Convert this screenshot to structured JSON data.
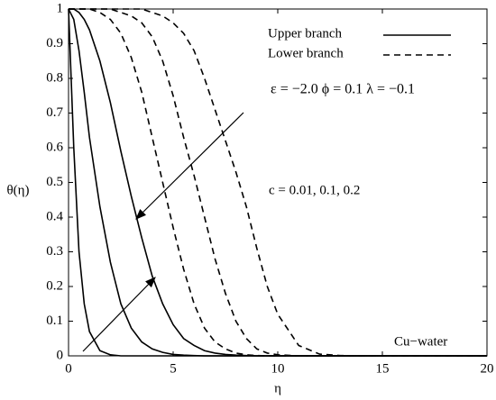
{
  "chart_data": {
    "type": "line",
    "xlabel": "η",
    "ylabel": "θ(η)",
    "xlim": [
      0,
      20
    ],
    "xticks": [
      0,
      5,
      10,
      15,
      20
    ],
    "ylim": [
      0,
      1
    ],
    "yticks": [
      0,
      0.1,
      0.2,
      0.3,
      0.4,
      0.5,
      0.6,
      0.7,
      0.8,
      0.9,
      1
    ],
    "annotations": [
      "ε = −2.0   ϕ = 0.1   λ = −0.1",
      "c = 0.01, 0.1, 0.2",
      "Cu−water"
    ],
    "x": [
      0,
      0.25,
      0.5,
      0.75,
      1,
      1.5,
      2,
      2.5,
      3,
      3.5,
      4,
      4.5,
      5,
      5.5,
      6,
      6.5,
      7,
      7.5,
      8,
      8.5,
      9,
      9.5,
      10,
      11,
      12,
      13,
      14,
      15,
      16,
      17,
      18,
      19,
      20
    ],
    "series": [
      {
        "name": "Upper branch",
        "color": "#000000",
        "dashed": false,
        "lines": [
          [
            1,
            0.6,
            0.3,
            0.15,
            0.07,
            0.015,
            0.003,
            0,
            0,
            0,
            0,
            0,
            0,
            0,
            0,
            0,
            0,
            0,
            0,
            0,
            0,
            0,
            0,
            0,
            0,
            0,
            0,
            0,
            0,
            0,
            0,
            0,
            0
          ],
          [
            1,
            0.97,
            0.88,
            0.76,
            0.63,
            0.43,
            0.27,
            0.15,
            0.08,
            0.04,
            0.02,
            0.01,
            0.004,
            0.002,
            0.001,
            0,
            0,
            0,
            0,
            0,
            0,
            0,
            0,
            0,
            0,
            0,
            0,
            0,
            0,
            0,
            0,
            0,
            0
          ],
          [
            1,
            1,
            0.99,
            0.97,
            0.94,
            0.85,
            0.73,
            0.59,
            0.46,
            0.34,
            0.23,
            0.15,
            0.09,
            0.05,
            0.03,
            0.015,
            0.008,
            0.004,
            0.002,
            0.001,
            0,
            0,
            0,
            0,
            0,
            0,
            0,
            0,
            0,
            0,
            0,
            0,
            0
          ]
        ]
      },
      {
        "name": "Lower branch",
        "color": "#000000",
        "dashed": true,
        "lines": [
          [
            1,
            1,
            1,
            1,
            1,
            0.99,
            0.97,
            0.93,
            0.86,
            0.76,
            0.63,
            0.5,
            0.37,
            0.25,
            0.15,
            0.08,
            0.04,
            0.02,
            0.008,
            0.003,
            0.001,
            0,
            0,
            0,
            0,
            0,
            0,
            0,
            0,
            0,
            0,
            0,
            0
          ],
          [
            1,
            1,
            1,
            1,
            1,
            1,
            1,
            0.99,
            0.98,
            0.96,
            0.92,
            0.85,
            0.75,
            0.63,
            0.52,
            0.4,
            0.28,
            0.18,
            0.1,
            0.05,
            0.02,
            0.008,
            0.003,
            0,
            0,
            0,
            0,
            0,
            0,
            0,
            0,
            0,
            0
          ],
          [
            1,
            1,
            1,
            1,
            1,
            1,
            1,
            1,
            1,
            1,
            0.99,
            0.98,
            0.96,
            0.93,
            0.88,
            0.8,
            0.71,
            0.62,
            0.53,
            0.43,
            0.31,
            0.2,
            0.12,
            0.03,
            0.005,
            0.001,
            0,
            0,
            0,
            0,
            0,
            0,
            0
          ]
        ]
      }
    ]
  }
}
